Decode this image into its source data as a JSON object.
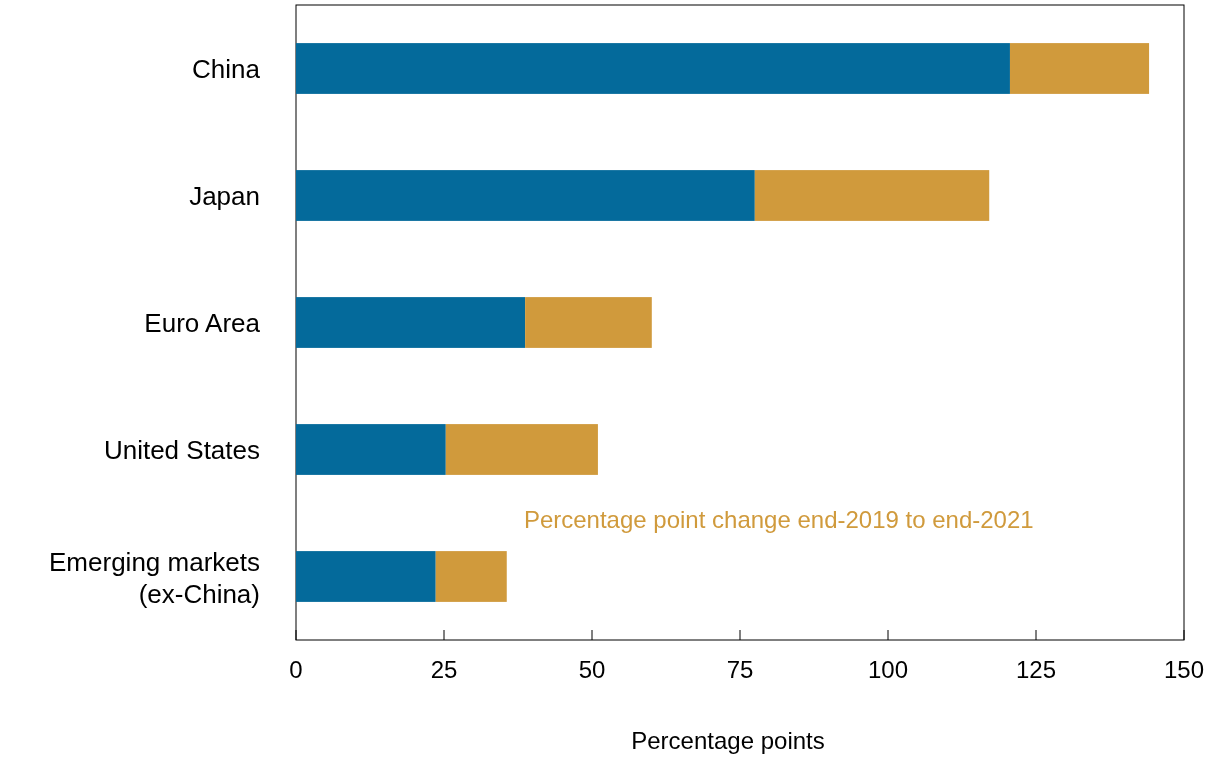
{
  "chart_data": {
    "type": "bar",
    "orientation": "horizontal",
    "stacked": true,
    "xlabel": "Percentage points",
    "categories": [
      "China",
      "Japan",
      "Euro Area",
      "United States",
      "Emerging markets\n(ex-China)"
    ],
    "series": [
      {
        "color": "#046a9b",
        "values": [
          120.6,
          77.5,
          38.7,
          25.3,
          23.6
        ]
      },
      {
        "name": "Percentage point change end-2019 to end-2021",
        "color": "#d09a3c",
        "values": [
          23.5,
          39.6,
          21.4,
          25.7,
          12.0
        ]
      }
    ],
    "xlim": [
      0,
      150
    ],
    "xticks": [
      0,
      25,
      50,
      75,
      100,
      125,
      150
    ],
    "legend": false
  }
}
